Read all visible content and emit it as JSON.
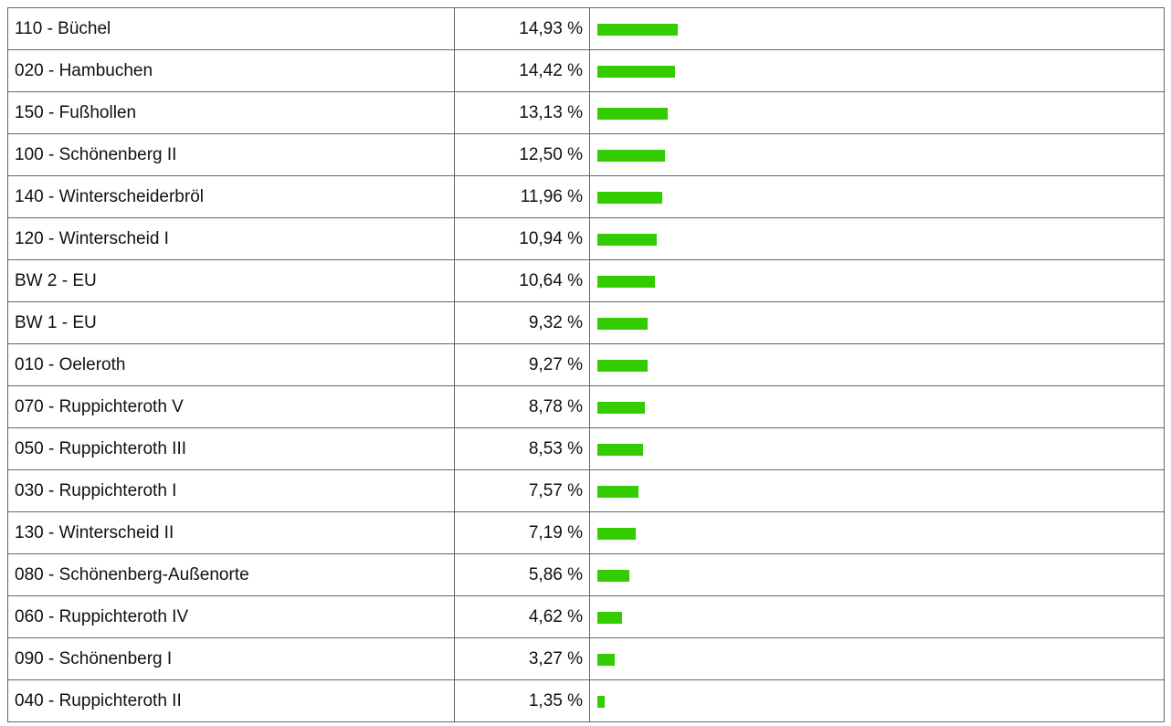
{
  "table": {
    "rows": [
      {
        "label": "110 - Büchel",
        "value": 14.93,
        "value_label": "14,93 %"
      },
      {
        "label": "020 - Hambuchen",
        "value": 14.42,
        "value_label": "14,42 %"
      },
      {
        "label": "150 - Fußhollen",
        "value": 13.13,
        "value_label": "13,13 %"
      },
      {
        "label": "100 - Schönenberg II",
        "value": 12.5,
        "value_label": "12,50 %"
      },
      {
        "label": "140 - Winterscheiderbröl",
        "value": 11.96,
        "value_label": "11,96 %"
      },
      {
        "label": "120 - Winterscheid I",
        "value": 10.94,
        "value_label": "10,94 %"
      },
      {
        "label": "BW 2 - EU",
        "value": 10.64,
        "value_label": "10,64 %"
      },
      {
        "label": "BW 1 - EU",
        "value": 9.32,
        "value_label": "9,32 %"
      },
      {
        "label": "010 - Oeleroth",
        "value": 9.27,
        "value_label": "9,27 %"
      },
      {
        "label": "070 - Ruppichteroth V",
        "value": 8.78,
        "value_label": "8,78 %"
      },
      {
        "label": "050 - Ruppichteroth III",
        "value": 8.53,
        "value_label": "8,53 %"
      },
      {
        "label": "030 - Ruppichteroth I",
        "value": 7.57,
        "value_label": "7,57 %"
      },
      {
        "label": "130 - Winterscheid II",
        "value": 7.19,
        "value_label": "7,19 %"
      },
      {
        "label": "080 - Schönenberg-Außenorte",
        "value": 5.86,
        "value_label": "5,86 %"
      },
      {
        "label": "060 - Ruppichteroth IV",
        "value": 4.62,
        "value_label": "4,62 %"
      },
      {
        "label": "090 - Schönenberg I",
        "value": 3.27,
        "value_label": "3,27 %"
      },
      {
        "label": "040 - Ruppichteroth II",
        "value": 1.35,
        "value_label": "1,35 %"
      }
    ]
  }
}
